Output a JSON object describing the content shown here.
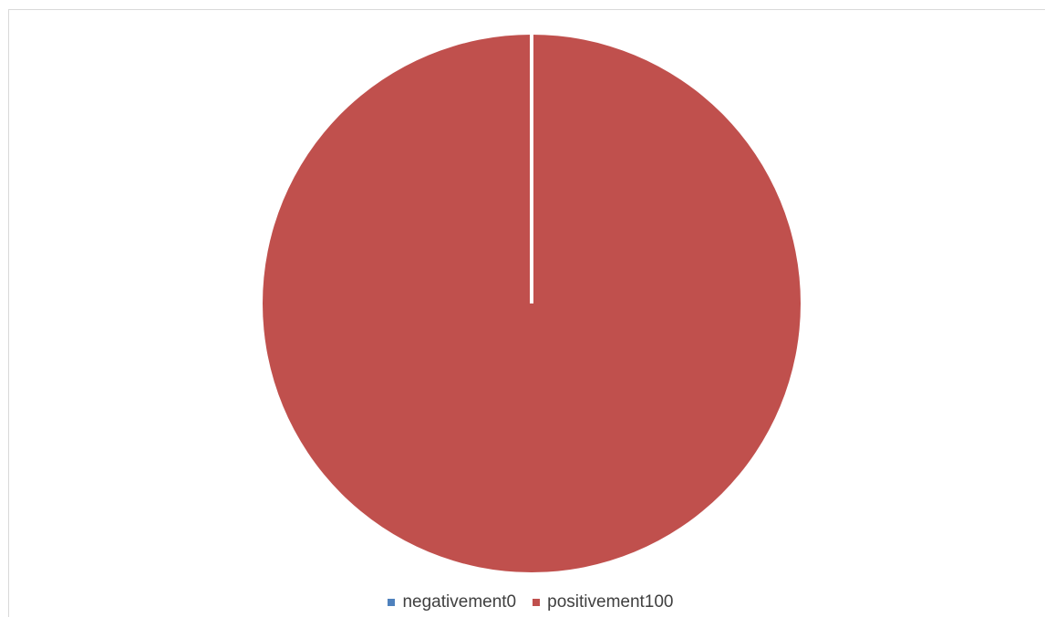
{
  "page": {
    "top_text": ""
  },
  "chart_data": {
    "type": "pie",
    "categories": [
      "negativement",
      "positivement"
    ],
    "values": [
      0,
      100
    ],
    "legend_labels": [
      "negativement0",
      "positivement100"
    ],
    "colors": [
      "#4f81bd",
      "#c0504d"
    ],
    "slice_border_color": "#ffffff",
    "legend_placement": "bottom"
  }
}
